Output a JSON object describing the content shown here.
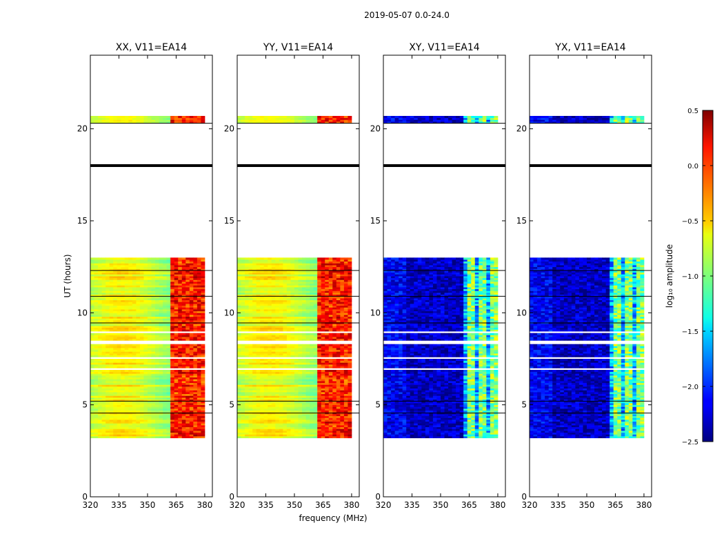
{
  "chart_data": {
    "type": "heatmap",
    "suptitle": "2019-05-07 0.0-24.0",
    "xlabel": "frequency (MHz)",
    "ylabel": "UT (hours)",
    "xlim": [
      320,
      384
    ],
    "ylim": [
      0,
      24
    ],
    "xticks": [
      320,
      335,
      350,
      365,
      380
    ],
    "yticks": [
      0,
      5,
      10,
      15,
      20
    ],
    "colorbar": {
      "label": "log₁₀ amplitude",
      "range": [
        -2.5,
        0.5
      ],
      "ticks": [
        "0.5",
        "0.0",
        "−0.5",
        "−1.0",
        "−1.5",
        "−2.0",
        "−2.5"
      ],
      "colormap": "jet"
    },
    "panels": [
      {
        "title": "XX, V11=EA14",
        "pol": "parallel"
      },
      {
        "title": "YY, V11=EA14",
        "pol": "parallel"
      },
      {
        "title": "XY, V11=EA14",
        "pol": "cross"
      },
      {
        "title": "YX, V11=EA14",
        "pol": "cross"
      }
    ],
    "data_time_range": [
      3.2,
      20.7
    ],
    "flagged_gaps_hours": [
      [
        13.0,
        20.3
      ]
    ],
    "strong_band_MHz": [
      361,
      380
    ],
    "approx_levels": {
      "parallel_low_band": -0.8,
      "parallel_high_band": 0.1,
      "cross_low_band": -2.4,
      "cross_high_band": -1.0
    }
  }
}
